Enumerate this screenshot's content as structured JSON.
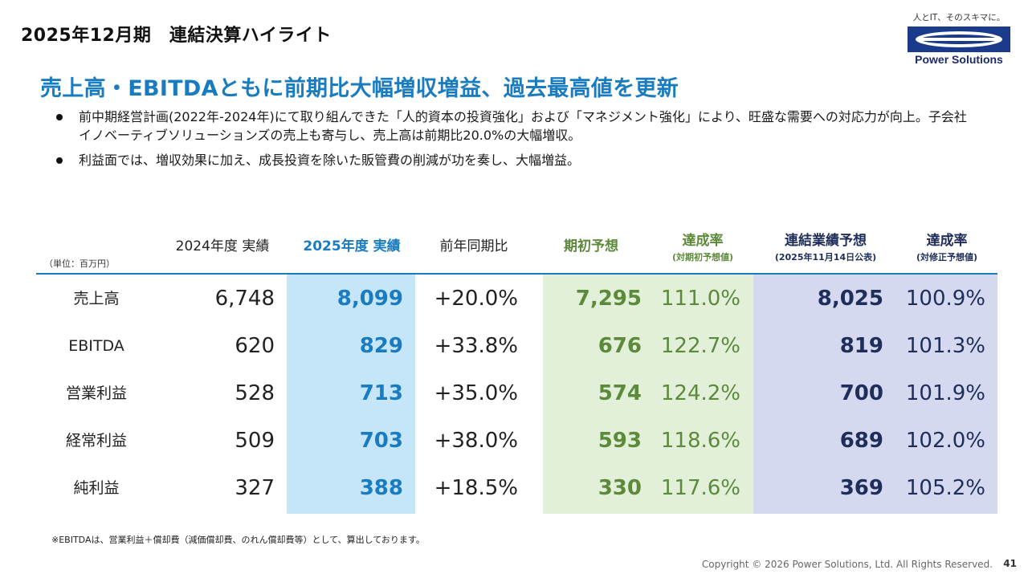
{
  "header": {
    "title": "2025年12月期　連結決算ハイライト",
    "logo_tagline": "人とIT、そのスキマに。",
    "logo_name": "Power Solutions"
  },
  "headline": "売上高・EBITDAともに前期比大幅増収増益、過去最高値を更新",
  "bullets": [
    "前中期経営計画(2022年-2024年)にて取り組んできた「人的資本の投資強化」および「マネジメント強化」により、旺盛な需要への対応力が向上。子会社イノベーティブソリューションズの売上も寄与し、売上高は前期比20.0%の大幅増収。",
    "利益面では、増収効果に加え、成長投資を除いた販管費の削減が功を奏し、大幅増益。"
  ],
  "table": {
    "unit": "（単位：百万円）",
    "headers": {
      "prev": "2024年度 実績",
      "curr": "2025年度 実績",
      "yoy": "前年同期比",
      "plan": "期初予想",
      "ach1": "達成率",
      "ach1_sub": "(対期初予想値)",
      "fcst": "連結業績予想",
      "fcst_sub": "(2025年11月14日公表)",
      "ach2": "達成率",
      "ach2_sub": "(対修正予想値)"
    },
    "rows": [
      {
        "label": "売上高",
        "prev": "6,748",
        "curr": "8,099",
        "yoy": "+20.0%",
        "plan": "7,295",
        "ach1": "111.0%",
        "fcst": "8,025",
        "ach2": "100.9%"
      },
      {
        "label": "EBITDA",
        "prev": "620",
        "curr": "829",
        "yoy": "+33.8%",
        "plan": "676",
        "ach1": "122.7%",
        "fcst": "819",
        "ach2": "101.3%"
      },
      {
        "label": "営業利益",
        "prev": "528",
        "curr": "713",
        "yoy": "+35.0%",
        "plan": "574",
        "ach1": "124.2%",
        "fcst": "700",
        "ach2": "101.9%"
      },
      {
        "label": "経常利益",
        "prev": "509",
        "curr": "703",
        "yoy": "+38.0%",
        "plan": "593",
        "ach1": "118.6%",
        "fcst": "689",
        "ach2": "102.0%"
      },
      {
        "label": "純利益",
        "prev": "327",
        "curr": "388",
        "yoy": "+18.5%",
        "plan": "330",
        "ach1": "117.6%",
        "fcst": "369",
        "ach2": "105.2%"
      }
    ]
  },
  "footnote": "※EBITDAは、営業利益＋償却費（減価償却費、のれん償却費等）として、算出しております。",
  "footer": {
    "copyright": "Copyright © 2026 Power Solutions, Ltd. All Rights Reserved.",
    "page_number": "41"
  }
}
